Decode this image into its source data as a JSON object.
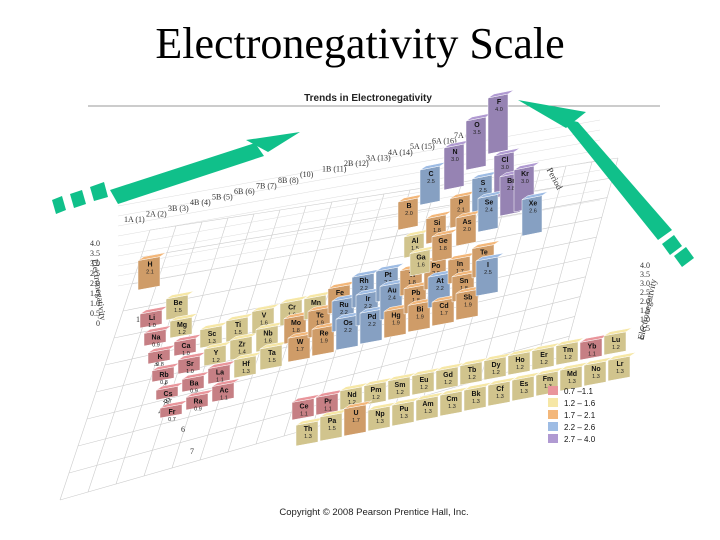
{
  "slide": {
    "title": "Electronegativity Scale"
  },
  "figure": {
    "title": "Trends in Electronegativity",
    "copyright": "Copyright © 2008 Pearson Prentice Hall, Inc.",
    "group_labels": [
      "1A (1)",
      "2A (2)",
      "3B (3)",
      "4B (4)",
      "5B (5)",
      "6B (6)",
      "7B (7)",
      "8B (8)",
      "(10)",
      "1B (11)",
      "2B (12)",
      "3A (13)",
      "4A (14)",
      "5A (15)",
      "6A (16)",
      "7A (17)"
    ],
    "axis_left_label": "Electronegativity",
    "axis_right_label": "Electronegativity",
    "period_label_left": "Period",
    "period_label_right": "Period",
    "ticks_left": [
      "4.0",
      "3.5",
      "3.0",
      "2.5",
      "2.0",
      "1.5",
      "1.0",
      "0.5",
      "0"
    ],
    "ticks_right": [
      "4.0",
      "3.5",
      "3.0",
      "2.5",
      "2.0",
      "1.5",
      "1.0",
      "0.5",
      "0"
    ],
    "period_numbers": [
      "1",
      "2",
      "3",
      "4",
      "5",
      "6",
      "7"
    ],
    "legend": [
      {
        "range": "0.7 –1.1",
        "color": "#e9959b"
      },
      {
        "range": "1.2 – 1.6",
        "color": "#f6e7a6"
      },
      {
        "range": "1.7 – 2.1",
        "color": "#f3b77a"
      },
      {
        "range": "2.2 – 2.6",
        "color": "#9ebce4"
      },
      {
        "range": "2.7 – 4.0",
        "color": "#b09ad2"
      }
    ],
    "elements": {
      "front": [
        {
          "s": "H",
          "v": "2.1"
        },
        {
          "s": "Li",
          "v": "1.0"
        },
        {
          "s": "Be",
          "v": "1.5"
        },
        {
          "s": "Na",
          "v": "0.9"
        },
        {
          "s": "Mg",
          "v": "1.2"
        },
        {
          "s": "K",
          "v": "0.8"
        },
        {
          "s": "Ca",
          "v": "1.0"
        },
        {
          "s": "Sc",
          "v": "1.3"
        },
        {
          "s": "Rb",
          "v": "0.8"
        },
        {
          "s": "Sr",
          "v": "1.0"
        },
        {
          "s": "Y",
          "v": "1.2"
        },
        {
          "s": "Cs",
          "v": "0.7"
        },
        {
          "s": "Ba",
          "v": "0.9"
        },
        {
          "s": "La",
          "v": "1.1"
        },
        {
          "s": "Fr",
          "v": "0.7"
        },
        {
          "s": "Ra",
          "v": "0.9"
        },
        {
          "s": "Ac",
          "v": "1.1"
        },
        {
          "s": "Ti",
          "v": "1.5"
        },
        {
          "s": "Zr",
          "v": "1.4"
        },
        {
          "s": "Hf",
          "v": "1.3"
        },
        {
          "s": "V",
          "v": "1.6"
        },
        {
          "s": "Nb",
          "v": "1.6"
        },
        {
          "s": "Ta",
          "v": "1.5"
        }
      ],
      "middle": [
        {
          "s": "Cr",
          "v": "1.6"
        },
        {
          "s": "Mo",
          "v": "1.8"
        },
        {
          "s": "W",
          "v": "1.7"
        },
        {
          "s": "Mn",
          "v": "1.5"
        },
        {
          "s": "Tc",
          "v": "1.9"
        },
        {
          "s": "Re",
          "v": "1.9"
        },
        {
          "s": "Fe",
          "v": "1.8"
        },
        {
          "s": "Ru",
          "v": "2.2"
        },
        {
          "s": "Os",
          "v": "2.2"
        },
        {
          "s": "Rh",
          "v": "2.2"
        },
        {
          "s": "Ir",
          "v": "2.2"
        },
        {
          "s": "Pd",
          "v": "2.2"
        },
        {
          "s": "Pt",
          "v": "2.2"
        },
        {
          "s": "Au",
          "v": "2.4"
        },
        {
          "s": "Hg",
          "v": "1.9"
        },
        {
          "s": "Tl",
          "v": "1.8"
        },
        {
          "s": "Pb",
          "v": "1.8"
        },
        {
          "s": "Bi",
          "v": "1.9"
        },
        {
          "s": "Po",
          "v": "2.0"
        },
        {
          "s": "At",
          "v": "2.2"
        },
        {
          "s": "Cd",
          "v": "1.7"
        },
        {
          "s": "In",
          "v": "1.7"
        },
        {
          "s": "Sn",
          "v": "1.8"
        },
        {
          "s": "Sb",
          "v": "1.9"
        },
        {
          "s": "Te",
          "v": "2.1"
        },
        {
          "s": "I",
          "v": "2.5"
        }
      ],
      "back": [
        {
          "s": "B",
          "v": "2.0"
        },
        {
          "s": "C",
          "v": "2.5"
        },
        {
          "s": "N",
          "v": "3.0"
        },
        {
          "s": "O",
          "v": "3.5"
        },
        {
          "s": "F",
          "v": "4.0"
        },
        {
          "s": "Al",
          "v": "1.5"
        },
        {
          "s": "Si",
          "v": "1.8"
        },
        {
          "s": "P",
          "v": "2.1"
        },
        {
          "s": "S",
          "v": "2.5"
        },
        {
          "s": "Cl",
          "v": "3.0"
        },
        {
          "s": "Ga",
          "v": "1.6"
        },
        {
          "s": "Ge",
          "v": "1.8"
        },
        {
          "s": "As",
          "v": "2.0"
        },
        {
          "s": "Se",
          "v": "2.4"
        },
        {
          "s": "Br",
          "v": "2.8"
        },
        {
          "s": "Kr",
          "v": "3.0"
        },
        {
          "s": "Xe",
          "v": "2.6"
        }
      ],
      "lanthanides": [
        {
          "s": "Ce",
          "v": "1.1"
        },
        {
          "s": "Pr",
          "v": "1.1"
        },
        {
          "s": "Nd",
          "v": "1.2"
        },
        {
          "s": "Pm",
          "v": "1.2"
        },
        {
          "s": "Sm",
          "v": "1.2"
        },
        {
          "s": "Eu",
          "v": "1.2"
        },
        {
          "s": "Gd",
          "v": "1.2"
        },
        {
          "s": "Tb",
          "v": "1.2"
        },
        {
          "s": "Dy",
          "v": "1.2"
        },
        {
          "s": "Ho",
          "v": "1.2"
        },
        {
          "s": "Er",
          "v": "1.2"
        },
        {
          "s": "Tm",
          "v": "1.2"
        },
        {
          "s": "Yb",
          "v": "1.1"
        },
        {
          "s": "Lu",
          "v": "1.2"
        }
      ],
      "actinides": [
        {
          "s": "Th",
          "v": "1.3"
        },
        {
          "s": "Pa",
          "v": "1.5"
        },
        {
          "s": "U",
          "v": "1.7"
        },
        {
          "s": "Np",
          "v": "1.3"
        },
        {
          "s": "Pu",
          "v": "1.3"
        },
        {
          "s": "Am",
          "v": "1.3"
        },
        {
          "s": "Cm",
          "v": "1.3"
        },
        {
          "s": "Bk",
          "v": "1.3"
        },
        {
          "s": "Cf",
          "v": "1.3"
        },
        {
          "s": "Es",
          "v": "1.3"
        },
        {
          "s": "Fm",
          "v": "1.3"
        },
        {
          "s": "Md",
          "v": "1.3"
        },
        {
          "s": "No",
          "v": "1.3"
        },
        {
          "s": "Lr",
          "v": "1.3"
        }
      ]
    }
  }
}
